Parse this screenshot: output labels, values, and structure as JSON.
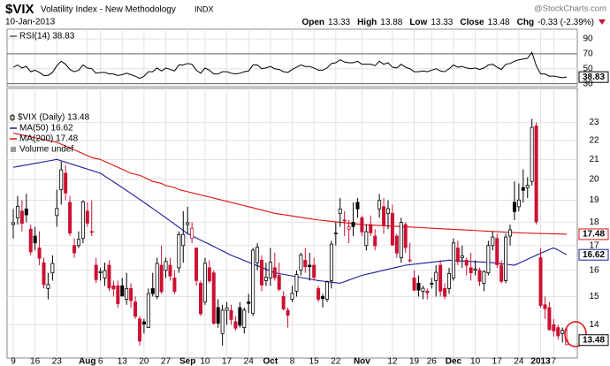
{
  "header": {
    "symbol": "$VIX",
    "name": "Volatility Index - New Methodology",
    "exchange": "INDX",
    "source": "@StockCharts.com",
    "date": "10-Jan-2013",
    "quote": [
      {
        "label": "Open",
        "value": "13.33"
      },
      {
        "label": "High",
        "value": "13.88"
      },
      {
        "label": "Low",
        "value": "13.33"
      },
      {
        "label": "Close",
        "value": "13.48"
      },
      {
        "label": "Chg",
        "value": "-0.33 (-2.39%)"
      }
    ]
  },
  "chart_data": {
    "type": "candlestick",
    "name": "$VIX (Daily) 13.48",
    "last_value": 13.48,
    "up_color": "#000000",
    "down_color": "#cc1133",
    "log": true,
    "grid": true,
    "ylim": [
      12.9,
      25.0
    ],
    "yticks": [
      14,
      15,
      16,
      17,
      18,
      19,
      20,
      21,
      22,
      23
    ],
    "categories": [
      "9",
      null,
      null,
      null,
      null,
      "16",
      null,
      null,
      null,
      null,
      "23",
      null,
      null,
      null,
      null,
      null,
      null,
      "Aug",
      null,
      null,
      "6",
      null,
      null,
      null,
      null,
      "13",
      null,
      null,
      null,
      null,
      "20",
      null,
      null,
      null,
      null,
      "27",
      null,
      null,
      null,
      null,
      "Sep",
      null,
      null,
      null,
      "10",
      null,
      null,
      null,
      null,
      "17",
      null,
      null,
      null,
      null,
      "24",
      null,
      null,
      null,
      null,
      "Oct",
      null,
      null,
      null,
      null,
      "8",
      null,
      null,
      null,
      null,
      "15",
      null,
      null,
      null,
      null,
      "22",
      null,
      null,
      null,
      null,
      null,
      "Nov",
      null,
      null,
      null,
      null,
      null,
      null,
      "12",
      null,
      null,
      null,
      null,
      "19",
      null,
      null,
      null,
      "26",
      null,
      null,
      null,
      null,
      "Dec",
      null,
      null,
      null,
      null,
      "10",
      null,
      null,
      null,
      null,
      "17",
      null,
      null,
      null,
      null,
      "24",
      null,
      null,
      null,
      null,
      "2013",
      null,
      null,
      "7",
      null,
      null,
      null
    ],
    "open": [
      17.9,
      18.2,
      18.5,
      18.6,
      17.7,
      17.4,
      16.9,
      16.3,
      15.3,
      15.9,
      18.3,
      19.5,
      20.3,
      18.9,
      17.0,
      17.0,
      17.3,
      18.5,
      17.6,
      16.2,
      15.9,
      15.7,
      16.2,
      15.4,
      15.4,
      15.4,
      14.9,
      15.3,
      14.8,
      14.2,
      14.1,
      13.9,
      15.3,
      15.0,
      16.2,
      16.0,
      16.2,
      15.7,
      16.1,
      17.0,
      17.9,
      17.3,
      16.9,
      15.5,
      14.8,
      16.1,
      15.9,
      14.6,
      13.7,
      14.5,
      14.5,
      14.1,
      14.6,
      13.9,
      14.8,
      14.4,
      16.3,
      16.4,
      15.6,
      15.7,
      16.1,
      15.8,
      15.0,
      14.5,
      14.9,
      15.2,
      16.0,
      16.4,
      16.2,
      16.2,
      15.3,
      15.0,
      14.9,
      15.6,
      17.5,
      18.4,
      18.1,
      17.7,
      18.0,
      18.9,
      18.2,
      17.0,
      17.9,
      17.4,
      18.6,
      18.7,
      18.4,
      18.4,
      17.4,
      16.5,
      17.9,
      16.4,
      15.7,
      15.5,
      15.2,
      15.2,
      15.5,
      15.6,
      16.2,
      15.3,
      15.3,
      15.7,
      16.9,
      16.5,
      16.4,
      16.1,
      16.0,
      16.0,
      15.5,
      15.9,
      17.0,
      17.3,
      16.2,
      15.6,
      17.4,
      18.9,
      18.7,
      19.6,
      19.6,
      19.9,
      22.8,
      16.5,
      14.7,
      14.6,
      14.0,
      13.9,
      13.7,
      13.33
    ],
    "high": [
      18.6,
      19.2,
      19.0,
      19.3,
      17.9,
      17.8,
      17.6,
      16.5,
      15.9,
      16.6,
      19.5,
      20.9,
      20.7,
      19.2,
      17.3,
      17.6,
      19.0,
      18.9,
      19.0,
      16.5,
      16.1,
      16.3,
      16.4,
      15.6,
      15.6,
      15.7,
      15.9,
      15.5,
      15.0,
      14.3,
      14.2,
      15.3,
      15.9,
      16.5,
      17.0,
      16.5,
      16.5,
      16.0,
      17.6,
      18.5,
      18.7,
      18.0,
      16.9,
      15.6,
      16.5,
      16.4,
      16.0,
      14.9,
      14.7,
      14.8,
      14.7,
      14.3,
      14.8,
      14.6,
      15.1,
      16.9,
      17.1,
      16.6,
      16.3,
      16.9,
      16.7,
      16.3,
      15.2,
      14.6,
      15.4,
      16.0,
      16.7,
      16.9,
      16.7,
      16.5,
      15.4,
      15.1,
      15.6,
      17.2,
      18.0,
      19.1,
      18.5,
      18.1,
      18.9,
      19.1,
      18.3,
      17.9,
      18.3,
      17.7,
      19.3,
      19.1,
      19.0,
      18.8,
      17.5,
      18.2,
      18.0,
      17.1,
      16.0,
      15.8,
      15.4,
      15.3,
      15.7,
      16.2,
      16.4,
      15.5,
      16.1,
      17.3,
      17.2,
      17.0,
      16.5,
      16.7,
      16.4,
      16.1,
      16.0,
      17.2,
      17.6,
      17.5,
      16.4,
      17.5,
      17.9,
      19.9,
      19.8,
      20.5,
      20.1,
      23.2,
      23.0,
      16.9,
      15.0,
      14.8,
      14.2,
      14.0,
      13.9,
      13.88
    ],
    "low": [
      17.3,
      17.9,
      17.6,
      18.0,
      16.6,
      16.8,
      16.2,
      15.3,
      14.9,
      15.6,
      17.8,
      18.8,
      19.0,
      17.4,
      16.5,
      16.9,
      17.1,
      17.8,
      17.4,
      15.5,
      15.6,
      15.4,
      15.2,
      15.0,
      14.6,
      15.0,
      14.7,
      14.6,
      14.2,
      13.3,
      13.7,
      13.9,
      15.0,
      14.9,
      15.1,
      15.7,
      15.6,
      15.1,
      15.9,
      16.3,
      17.5,
      17.1,
      15.4,
      14.3,
      14.7,
      15.5,
      14.0,
      13.9,
      13.3,
      14.0,
      14.0,
      13.8,
      13.9,
      13.7,
      14.4,
      14.3,
      16.0,
      15.2,
      15.4,
      15.4,
      15.6,
      15.2,
      14.5,
      13.9,
      14.8,
      15.0,
      15.8,
      15.9,
      15.6,
      15.6,
      14.8,
      14.6,
      14.8,
      15.3,
      17.0,
      17.8,
      17.4,
      17.1,
      17.4,
      18.2,
      17.4,
      16.8,
      17.4,
      16.8,
      18.2,
      17.5,
      17.7,
      17.0,
      16.5,
      16.3,
      16.7,
      16.3,
      15.2,
      15.0,
      14.9,
      14.9,
      15.3,
      15.0,
      15.0,
      14.9,
      15.1,
      15.6,
      16.2,
      16.1,
      15.8,
      15.6,
      15.8,
      15.4,
      15.2,
      15.8,
      16.8,
      16.1,
      15.5,
      15.5,
      17.0,
      18.1,
      18.5,
      18.9,
      19.1,
      19.7,
      17.9,
      14.6,
      14.2,
      13.8,
      13.6,
      13.5,
      13.4,
      13.33
    ],
    "close": [
      17.98,
      18.72,
      17.95,
      18.33,
      16.74,
      17.11,
      16.48,
      15.45,
      15.45,
      16.27,
      18.62,
      20.47,
      19.34,
      17.53,
      16.7,
      17.26,
      18.93,
      17.96,
      17.57,
      15.64,
      15.95,
      15.99,
      15.32,
      15.28,
      14.74,
      15.02,
      15.3,
      14.85,
      14.29,
      13.45,
      14.02,
      15.11,
      15.11,
      16.27,
      15.18,
      16.35,
      15.78,
      15.19,
      17.46,
      17.47,
      17.98,
      17.74,
      15.6,
      14.38,
      16.28,
      15.59,
      14.05,
      14.05,
      14.51,
      14.59,
      14.18,
      13.88,
      13.98,
      14.51,
      14.75,
      16.81,
      16.93,
      15.43,
      15.73,
      16.32,
      15.71,
      15.27,
      14.55,
      14.33,
      15.12,
      15.83,
      16.62,
      16.14,
      16.14,
      15.72,
      14.9,
      14.93,
      15.55,
      17.06,
      17.53,
      18.6,
      18.07,
      17.8,
      17.81,
      18.6,
      17.58,
      17.59,
      17.54,
      16.99,
      18.99,
      17.87,
      18.61,
      17.02,
      16.69,
      17.99,
      16.92,
      16.41,
      15.24,
      15.24,
      15.31,
      15.14,
      15.5,
      15.92,
      15.2,
      15.01,
      15.87,
      17.11,
      16.34,
      16.58,
      16.2,
      15.9,
      16.05,
      15.57,
      15.95,
      17.0,
      17.36,
      16.22,
      15.57,
      17.36,
      17.67,
      18.48,
      19.01,
      19.47,
      19.71,
      22.72,
      18.02,
      14.68,
      14.56,
      13.83,
      13.79,
      13.62,
      13.81,
      13.48
    ],
    "series": [
      {
        "name": "MA(50) 16.62",
        "color": "#1a1a99",
        "last_value": 16.62,
        "values": [
          20.6,
          20.64,
          20.68,
          20.72,
          20.76,
          20.8,
          20.84,
          20.88,
          20.92,
          20.96,
          21.0,
          20.93,
          20.86,
          20.79,
          20.72,
          20.65,
          20.58,
          20.51,
          20.44,
          20.37,
          20.3,
          20.16,
          20.02,
          19.88,
          19.74,
          19.6,
          19.46,
          19.32,
          19.18,
          19.04,
          18.9,
          18.76,
          18.62,
          18.48,
          18.34,
          18.2,
          18.06,
          17.92,
          17.78,
          17.64,
          17.5,
          17.41,
          17.32,
          17.23,
          17.14,
          17.05,
          16.96,
          16.87,
          16.78,
          16.69,
          16.6,
          16.53,
          16.46,
          16.39,
          16.32,
          16.25,
          16.18,
          16.11,
          16.04,
          15.97,
          15.9,
          15.87,
          15.84,
          15.81,
          15.78,
          15.75,
          15.72,
          15.69,
          15.66,
          15.63,
          15.6,
          15.58,
          15.56,
          15.54,
          15.52,
          15.5,
          15.56,
          15.62,
          15.68,
          15.74,
          15.8,
          15.84,
          15.88,
          15.92,
          15.96,
          16.0,
          16.04,
          16.08,
          16.12,
          16.16,
          16.2,
          16.22,
          16.24,
          16.26,
          16.28,
          16.3,
          16.32,
          16.34,
          16.36,
          16.38,
          16.4,
          16.39,
          16.38,
          16.37,
          16.36,
          16.35,
          16.34,
          16.33,
          16.32,
          16.31,
          16.3,
          16.28,
          16.26,
          16.24,
          16.22,
          16.2,
          16.28,
          16.36,
          16.44,
          16.52,
          16.6,
          16.68,
          16.76,
          16.84,
          16.9,
          16.82,
          16.72,
          16.62
        ]
      },
      {
        "name": "MA(200) 17.48",
        "color": "#dd1111",
        "last_value": 17.48,
        "values": [
          22.4,
          22.35,
          22.3,
          22.25,
          22.2,
          22.15,
          22.1,
          22.05,
          22.0,
          21.95,
          21.9,
          21.8,
          21.7,
          21.6,
          21.5,
          21.4,
          21.3,
          21.2,
          21.1,
          21.05,
          21.0,
          20.9,
          20.8,
          20.7,
          20.6,
          20.5,
          20.4,
          20.3,
          20.25,
          20.2,
          20.1,
          20.0,
          19.9,
          19.85,
          19.8,
          19.7,
          19.65,
          19.6,
          19.5,
          19.45,
          19.4,
          19.35,
          19.3,
          19.25,
          19.2,
          19.15,
          19.1,
          19.05,
          19.0,
          18.95,
          18.9,
          18.85,
          18.8,
          18.75,
          18.7,
          18.65,
          18.6,
          18.55,
          18.5,
          18.45,
          18.4,
          18.37,
          18.34,
          18.31,
          18.28,
          18.25,
          18.22,
          18.19,
          18.16,
          18.13,
          18.1,
          18.08,
          18.06,
          18.04,
          18.02,
          18.0,
          17.98,
          17.96,
          17.94,
          17.92,
          17.9,
          17.89,
          17.88,
          17.87,
          17.86,
          17.85,
          17.84,
          17.83,
          17.82,
          17.81,
          17.8,
          17.79,
          17.78,
          17.77,
          17.76,
          17.75,
          17.74,
          17.73,
          17.72,
          17.71,
          17.7,
          17.69,
          17.68,
          17.67,
          17.66,
          17.65,
          17.64,
          17.63,
          17.62,
          17.61,
          17.6,
          17.59,
          17.58,
          17.57,
          17.56,
          17.55,
          17.54,
          17.53,
          17.53,
          17.52,
          17.52,
          17.51,
          17.51,
          17.5,
          17.5,
          17.49,
          17.49,
          17.48
        ]
      }
    ],
    "extra_legend": [
      {
        "name": "Volume undef",
        "color": "#999999"
      }
    ],
    "indicator": {
      "name": "RSI(14) 38.83",
      "color": "#000000",
      "last_value": 38.83,
      "ylim": [
        26,
        103
      ],
      "yticks": [
        90,
        70,
        50,
        30
      ],
      "levels": [
        70,
        30
      ],
      "values": [
        52,
        55,
        51,
        53,
        46,
        48,
        45,
        41,
        41,
        45,
        54,
        60,
        56,
        49,
        46,
        48,
        55,
        51,
        50,
        44,
        45,
        45,
        43,
        43,
        41,
        42,
        44,
        42,
        40,
        37,
        40,
        46,
        46,
        51,
        47,
        51,
        49,
        47,
        55,
        55,
        57,
        56,
        48,
        44,
        51,
        48,
        43,
        43,
        46,
        46,
        44,
        43,
        44,
        46,
        47,
        55,
        55,
        50,
        51,
        53,
        50,
        49,
        46,
        45,
        49,
        52,
        55,
        53,
        53,
        51,
        48,
        48,
        51,
        57,
        58,
        62,
        59,
        58,
        58,
        60,
        56,
        56,
        56,
        54,
        60,
        56,
        58,
        52,
        51,
        56,
        52,
        50,
        46,
        46,
        47,
        46,
        48,
        50,
        47,
        46,
        50,
        55,
        52,
        53,
        51,
        50,
        51,
        49,
        51,
        55,
        56,
        52,
        49,
        56,
        57,
        60,
        62,
        63,
        64,
        72,
        54,
        43,
        43,
        40,
        40,
        39,
        38,
        38.83
      ]
    }
  }
}
